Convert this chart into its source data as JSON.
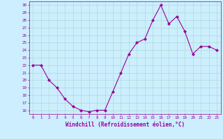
{
  "x": [
    0,
    1,
    2,
    3,
    4,
    5,
    6,
    7,
    8,
    9,
    10,
    11,
    12,
    13,
    14,
    15,
    16,
    17,
    18,
    19,
    20,
    21,
    22,
    23
  ],
  "y": [
    22,
    22,
    20,
    19,
    17.5,
    16.5,
    16,
    15.8,
    16,
    16,
    18.5,
    21,
    23.5,
    25,
    25.5,
    28,
    30,
    27.5,
    28.5,
    26.5,
    23.5,
    24.5,
    24.5,
    24
  ],
  "line_color": "#990099",
  "marker": "D",
  "marker_size": 2,
  "bg_color": "#cceeff",
  "grid_color": "#aaddcc",
  "xlabel": "Windchill (Refroidissement éolien,°C)",
  "xlabel_color": "#990099",
  "tick_color": "#990099",
  "ylim": [
    15.5,
    30.5
  ],
  "xlim": [
    -0.5,
    23.5
  ],
  "yticks": [
    16,
    17,
    18,
    19,
    20,
    21,
    22,
    23,
    24,
    25,
    26,
    27,
    28,
    29,
    30
  ],
  "xticks": [
    0,
    1,
    2,
    3,
    4,
    5,
    6,
    7,
    8,
    9,
    10,
    11,
    12,
    13,
    14,
    15,
    16,
    17,
    18,
    19,
    20,
    21,
    22,
    23
  ],
  "font_family": "monospace"
}
